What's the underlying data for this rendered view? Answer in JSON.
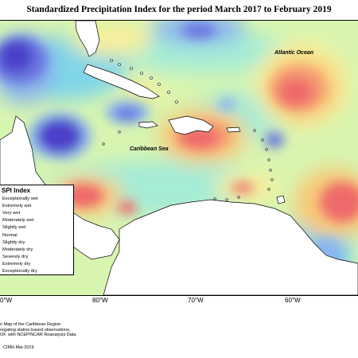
{
  "title": "Standardized Precipitation Index for the period March 2017 to February 2019",
  "labels": {
    "atlantic": "Atlantic Ocean",
    "caribbean": "Caribbean Sea"
  },
  "longitude_ticks": [
    "0°W",
    "80°W",
    "70°W",
    "60°W"
  ],
  "legend": {
    "title": "SPI Index",
    "items": [
      {
        "label": "Exceptionally wet",
        "color": "#4b3fc9"
      },
      {
        "label": "Extremely wet",
        "color": "#6a76e0"
      },
      {
        "label": "Very wet",
        "color": "#8ab6ee"
      },
      {
        "label": "Moderately wet",
        "color": "#7fd6e8"
      },
      {
        "label": "Slightly wet",
        "color": "#a6ecd6"
      },
      {
        "label": "Normal",
        "color": "#d8f5b0"
      },
      {
        "label": "Slightly dry",
        "color": "#f8ef9a"
      },
      {
        "label": "Moderately dry",
        "color": "#f8c877"
      },
      {
        "label": "Severely dry",
        "color": "#f59a72"
      },
      {
        "label": "Extremely dry",
        "color": "#ee6a6a"
      },
      {
        "label": "Exceptionally dry",
        "color": "#d94a55"
      }
    ]
  },
  "footer": {
    "line1": "n Map of the Caribbean Region",
    "line2": "regating station based observations,",
    "line3": "OF, with NCEP/NCAR Reanalysis Data.",
    "credit": "CIMH Mar.2019"
  }
}
